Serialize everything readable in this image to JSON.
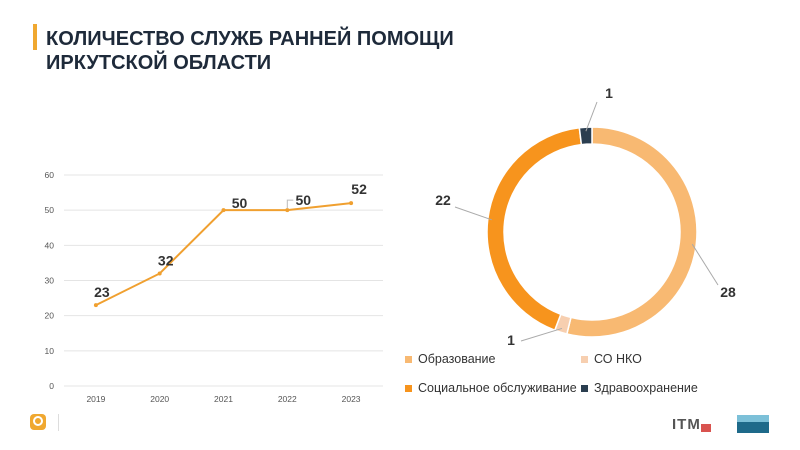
{
  "header": {
    "title_line1": "КОЛИЧЕСТВО СЛУЖБ РАННЕЙ ПОМОЩИ",
    "title_line2": "ИРКУТСКОЙ ОБЛАСТИ"
  },
  "colors": {
    "line": "#f0a030",
    "grid": "#e4e4e4",
    "axis_text": "#555555",
    "label_text": "#333333"
  },
  "chart_data": [
    {
      "type": "line",
      "title": "",
      "x": [
        "2019",
        "2020",
        "2021",
        "2022",
        "2023"
      ],
      "values": [
        23,
        32,
        50,
        50,
        52
      ],
      "data_labels": [
        "23",
        "32",
        "50",
        "50",
        "52"
      ],
      "ylim": [
        0,
        60
      ],
      "yticks": [
        "0",
        "10",
        "20",
        "30",
        "40",
        "50",
        "60"
      ],
      "grid": true,
      "xlabel": "",
      "ylabel": ""
    },
    {
      "type": "pie",
      "subtype": "donut",
      "slices": [
        {
          "name": "Образование",
          "value": 28,
          "label": "28",
          "color": "#f8b972"
        },
        {
          "name": "СО НКО",
          "value": 1,
          "label": "1",
          "color": "#f7cfb0"
        },
        {
          "name": "Социальное обслуживание",
          "value": 22,
          "label": "22",
          "color": "#f7941d"
        },
        {
          "name": "Здравоохранение",
          "value": 1,
          "label": "1",
          "color": "#2b3e50"
        }
      ],
      "legend_position": "bottom"
    }
  ],
  "footer": {
    "logo_center_text": "ITM"
  }
}
